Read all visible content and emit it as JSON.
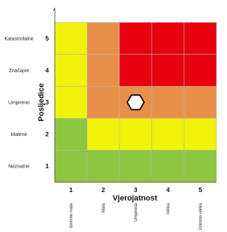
{
  "chart_data": {
    "type": "heatmap",
    "xlabel": "Vjerojatnost",
    "ylabel": "Posljedice",
    "x_ticks": [
      "1",
      "2",
      "3",
      "4",
      "5"
    ],
    "x_categories": [
      "Iznimno mala",
      "Mala",
      "Umjerena",
      "Velika",
      "Iznimno velika"
    ],
    "y_ticks": [
      "1",
      "2",
      "3",
      "4",
      "5"
    ],
    "y_categories": [
      "Neznatne",
      "Malene",
      "Umjerene",
      "Značajne",
      "Katastrofalne"
    ],
    "level_colors": {
      "low": "#8dc63f",
      "medium": "#f2f20a",
      "high": "#e8904a",
      "very_high": "#e8000e"
    },
    "grid": [
      {
        "consequence": 5,
        "levels": [
          "medium",
          "high",
          "very_high",
          "very_high",
          "very_high"
        ]
      },
      {
        "consequence": 4,
        "levels": [
          "medium",
          "high",
          "very_high",
          "very_high",
          "very_high"
        ]
      },
      {
        "consequence": 3,
        "levels": [
          "medium",
          "high",
          "high",
          "high",
          "high"
        ]
      },
      {
        "consequence": 2,
        "levels": [
          "low",
          "medium",
          "medium",
          "medium",
          "medium"
        ]
      },
      {
        "consequence": 1,
        "levels": [
          "low",
          "low",
          "low",
          "low",
          "low"
        ]
      }
    ],
    "marker": {
      "shape": "hexagon",
      "x": 3,
      "y": 3,
      "fill": "#ffffff"
    }
  }
}
